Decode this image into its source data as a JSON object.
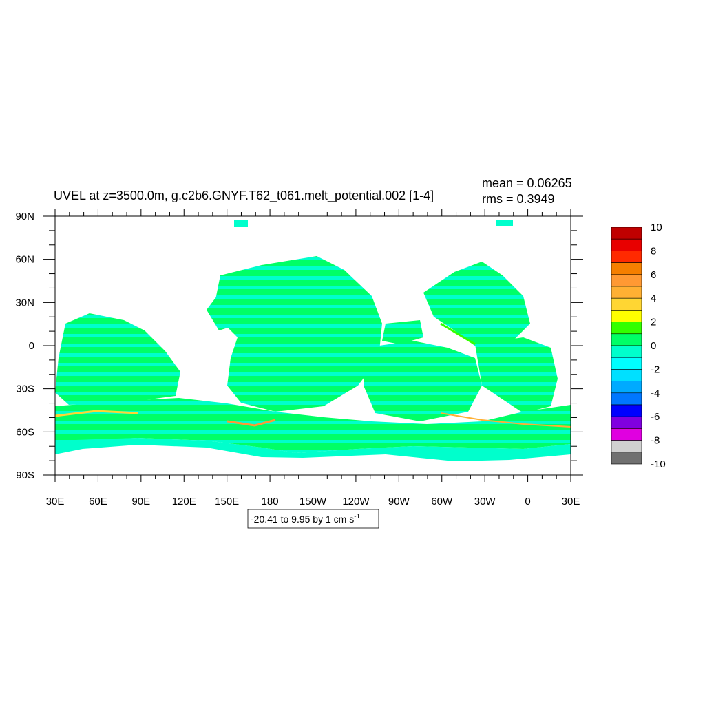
{
  "title": "UVEL at z=3500.0m, g.c2b6.GNYF.T62_t061.melt_potential.002 [1-4]",
  "stats": {
    "mean": "mean = 0.06265",
    "rms": "rms = 0.3949"
  },
  "caption": {
    "text": "-20.41 to 9.95 by 1 cm s",
    "superscript": "-1"
  },
  "colors": {
    "land": "#ffffff",
    "bg_field": "#00ffcc",
    "band_zero_pos": "#00ff66",
    "band_one_two": "#33ff00"
  },
  "chart_data": {
    "type": "heatmap",
    "variable": "UVEL",
    "units": "cm s-1",
    "xlim": [
      30,
      390
    ],
    "ylim": [
      -90,
      90
    ],
    "x_ticks": [
      {
        "value": 30,
        "label": "30E"
      },
      {
        "value": 60,
        "label": "60E"
      },
      {
        "value": 90,
        "label": "90E"
      },
      {
        "value": 120,
        "label": "120E"
      },
      {
        "value": 150,
        "label": "150E"
      },
      {
        "value": 180,
        "label": "180"
      },
      {
        "value": 210,
        "label": "150W"
      },
      {
        "value": 240,
        "label": "120W"
      },
      {
        "value": 270,
        "label": "90W"
      },
      {
        "value": 300,
        "label": "60W"
      },
      {
        "value": 330,
        "label": "30W"
      },
      {
        "value": 360,
        "label": "0"
      },
      {
        "value": 390,
        "label": "30E"
      }
    ],
    "y_ticks": [
      {
        "value": 90,
        "label": "90N"
      },
      {
        "value": 60,
        "label": "60N"
      },
      {
        "value": 30,
        "label": "30N"
      },
      {
        "value": 0,
        "label": "0"
      },
      {
        "value": -30,
        "label": "30S"
      },
      {
        "value": -60,
        "label": "60S"
      },
      {
        "value": -90,
        "label": "90S"
      }
    ],
    "colorbar": {
      "labels": [
        "10",
        "8",
        "6",
        "4",
        "2",
        "0",
        "-2",
        "-4",
        "-6",
        "-8",
        "-10"
      ],
      "colors": [
        "#c00000",
        "#e80000",
        "#ff2a00",
        "#f57f00",
        "#ff9933",
        "#ffb033",
        "#ffd633",
        "#ffff00",
        "#33ff00",
        "#00ff66",
        "#00ffcc",
        "#00ffff",
        "#00e0ff",
        "#00aaff",
        "#0077ff",
        "#0000ff",
        "#8000e0",
        "#e000e0",
        "#d0d0d0",
        "#707070"
      ]
    }
  }
}
